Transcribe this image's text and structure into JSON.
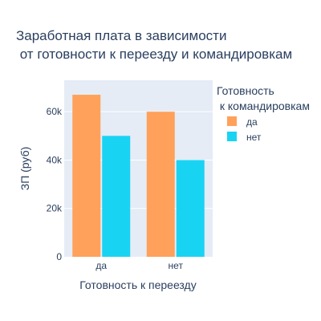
{
  "chart_data": {
    "type": "bar",
    "title_line1": "Заработная плата в зависимости",
    "title_line2": " от готовности к переезду и командировкам",
    "xlabel": "Готовность к переезду",
    "ylabel": "ЗП (руб)",
    "categories": [
      "да",
      "нет"
    ],
    "series": [
      {
        "name": "да",
        "color": "#FFA15A",
        "values": [
          67000,
          60000
        ]
      },
      {
        "name": "нет",
        "color": "#19D3F3",
        "values": [
          50000,
          40000
        ]
      }
    ],
    "ylim": [
      0,
      73000
    ],
    "yticks": [
      0,
      20000,
      40000,
      60000
    ],
    "ytick_labels": [
      "0",
      "20k",
      "40k",
      "60k"
    ],
    "legend_title_line1": "Готовность",
    "legend_title_line2": " к командировкам",
    "legend_position": "right",
    "grid": true,
    "plot_bg": "#E5ECF6"
  }
}
